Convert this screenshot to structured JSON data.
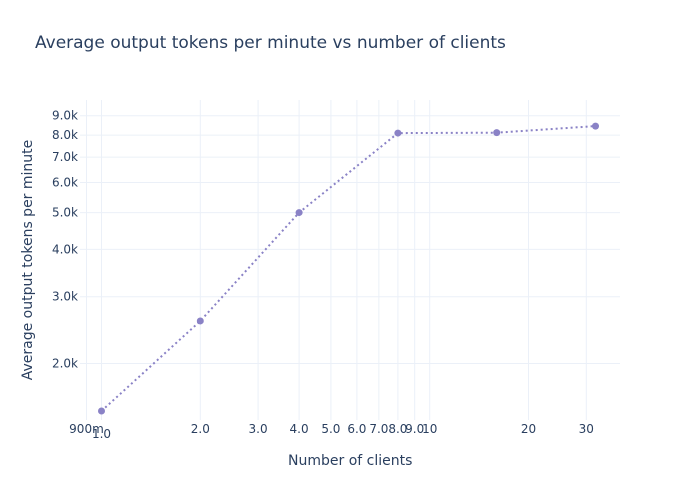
{
  "chart_data": {
    "type": "line",
    "title": "Average output tokens per minute vs number of clients",
    "xlabel": "Number of clients",
    "ylabel": "Average output tokens per minute",
    "x_scale": "log",
    "y_scale": "log",
    "xlim": [
      0.86,
      38
    ],
    "ylim": [
      1420,
      9900
    ],
    "grid": true,
    "line_style": "dotted",
    "series": [
      {
        "color": "#8a82c6",
        "x": [
          1,
          2,
          4,
          8,
          16,
          32
        ],
        "y": [
          1500,
          2590,
          5000,
          8100,
          8120,
          8450
        ]
      }
    ],
    "x_ticks": [
      {
        "value": 0.9,
        "label": "900m"
      },
      {
        "value": 1,
        "label": "1.0"
      },
      {
        "value": 2,
        "label": "2.0"
      },
      {
        "value": 3,
        "label": "3.0"
      },
      {
        "value": 4,
        "label": "4.0"
      },
      {
        "value": 5,
        "label": "5.0"
      },
      {
        "value": 6,
        "label": "6.0"
      },
      {
        "value": 7,
        "label": "7.0"
      },
      {
        "value": 8,
        "label": "8.0"
      },
      {
        "value": 9,
        "label": "9.0"
      },
      {
        "value": 10,
        "label": "10"
      },
      {
        "value": 20,
        "label": "20"
      },
      {
        "value": 30,
        "label": "30"
      }
    ],
    "y_ticks": [
      {
        "value": 2000,
        "label": "2.0k"
      },
      {
        "value": 3000,
        "label": "3.0k"
      },
      {
        "value": 4000,
        "label": "4.0k"
      },
      {
        "value": 5000,
        "label": "5.0k"
      },
      {
        "value": 6000,
        "label": "6.0k"
      },
      {
        "value": 7000,
        "label": "7.0k"
      },
      {
        "value": 8000,
        "label": "8.0k"
      },
      {
        "value": 9000,
        "label": "9.0k"
      }
    ],
    "colors": {
      "grid": "#ebf0f8",
      "text": "#2a3f5f",
      "marker": "#8a82c6"
    }
  }
}
